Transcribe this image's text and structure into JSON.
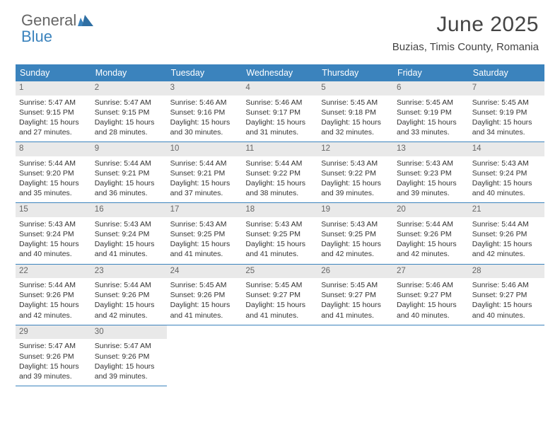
{
  "brand": {
    "word1": "General",
    "word2": "Blue"
  },
  "title": "June 2025",
  "location": "Buzias, Timis County, Romania",
  "colors": {
    "header_bg": "#3b83bd",
    "header_text": "#ffffff",
    "daynum_bg": "#e9e9e9",
    "row_border": "#3b83bd",
    "body_text": "#333333",
    "logo_gray": "#666666",
    "logo_blue": "#3b83bd"
  },
  "typography": {
    "title_fontsize": 30,
    "location_fontsize": 15,
    "header_cell_fontsize": 12.5,
    "cell_fontsize": 10.5
  },
  "layout": {
    "columns": 7,
    "col_width": 106.8,
    "total_width": 748
  },
  "weekdays": [
    "Sunday",
    "Monday",
    "Tuesday",
    "Wednesday",
    "Thursday",
    "Friday",
    "Saturday"
  ],
  "weeks": [
    [
      {
        "day": "1",
        "sunrise": "Sunrise: 5:47 AM",
        "sunset": "Sunset: 9:15 PM",
        "day1": "Daylight: 15 hours",
        "day2": "and 27 minutes."
      },
      {
        "day": "2",
        "sunrise": "Sunrise: 5:47 AM",
        "sunset": "Sunset: 9:15 PM",
        "day1": "Daylight: 15 hours",
        "day2": "and 28 minutes."
      },
      {
        "day": "3",
        "sunrise": "Sunrise: 5:46 AM",
        "sunset": "Sunset: 9:16 PM",
        "day1": "Daylight: 15 hours",
        "day2": "and 30 minutes."
      },
      {
        "day": "4",
        "sunrise": "Sunrise: 5:46 AM",
        "sunset": "Sunset: 9:17 PM",
        "day1": "Daylight: 15 hours",
        "day2": "and 31 minutes."
      },
      {
        "day": "5",
        "sunrise": "Sunrise: 5:45 AM",
        "sunset": "Sunset: 9:18 PM",
        "day1": "Daylight: 15 hours",
        "day2": "and 32 minutes."
      },
      {
        "day": "6",
        "sunrise": "Sunrise: 5:45 AM",
        "sunset": "Sunset: 9:19 PM",
        "day1": "Daylight: 15 hours",
        "day2": "and 33 minutes."
      },
      {
        "day": "7",
        "sunrise": "Sunrise: 5:45 AM",
        "sunset": "Sunset: 9:19 PM",
        "day1": "Daylight: 15 hours",
        "day2": "and 34 minutes."
      }
    ],
    [
      {
        "day": "8",
        "sunrise": "Sunrise: 5:44 AM",
        "sunset": "Sunset: 9:20 PM",
        "day1": "Daylight: 15 hours",
        "day2": "and 35 minutes."
      },
      {
        "day": "9",
        "sunrise": "Sunrise: 5:44 AM",
        "sunset": "Sunset: 9:21 PM",
        "day1": "Daylight: 15 hours",
        "day2": "and 36 minutes."
      },
      {
        "day": "10",
        "sunrise": "Sunrise: 5:44 AM",
        "sunset": "Sunset: 9:21 PM",
        "day1": "Daylight: 15 hours",
        "day2": "and 37 minutes."
      },
      {
        "day": "11",
        "sunrise": "Sunrise: 5:44 AM",
        "sunset": "Sunset: 9:22 PM",
        "day1": "Daylight: 15 hours",
        "day2": "and 38 minutes."
      },
      {
        "day": "12",
        "sunrise": "Sunrise: 5:43 AM",
        "sunset": "Sunset: 9:22 PM",
        "day1": "Daylight: 15 hours",
        "day2": "and 39 minutes."
      },
      {
        "day": "13",
        "sunrise": "Sunrise: 5:43 AM",
        "sunset": "Sunset: 9:23 PM",
        "day1": "Daylight: 15 hours",
        "day2": "and 39 minutes."
      },
      {
        "day": "14",
        "sunrise": "Sunrise: 5:43 AM",
        "sunset": "Sunset: 9:24 PM",
        "day1": "Daylight: 15 hours",
        "day2": "and 40 minutes."
      }
    ],
    [
      {
        "day": "15",
        "sunrise": "Sunrise: 5:43 AM",
        "sunset": "Sunset: 9:24 PM",
        "day1": "Daylight: 15 hours",
        "day2": "and 40 minutes."
      },
      {
        "day": "16",
        "sunrise": "Sunrise: 5:43 AM",
        "sunset": "Sunset: 9:24 PM",
        "day1": "Daylight: 15 hours",
        "day2": "and 41 minutes."
      },
      {
        "day": "17",
        "sunrise": "Sunrise: 5:43 AM",
        "sunset": "Sunset: 9:25 PM",
        "day1": "Daylight: 15 hours",
        "day2": "and 41 minutes."
      },
      {
        "day": "18",
        "sunrise": "Sunrise: 5:43 AM",
        "sunset": "Sunset: 9:25 PM",
        "day1": "Daylight: 15 hours",
        "day2": "and 41 minutes."
      },
      {
        "day": "19",
        "sunrise": "Sunrise: 5:43 AM",
        "sunset": "Sunset: 9:25 PM",
        "day1": "Daylight: 15 hours",
        "day2": "and 42 minutes."
      },
      {
        "day": "20",
        "sunrise": "Sunrise: 5:44 AM",
        "sunset": "Sunset: 9:26 PM",
        "day1": "Daylight: 15 hours",
        "day2": "and 42 minutes."
      },
      {
        "day": "21",
        "sunrise": "Sunrise: 5:44 AM",
        "sunset": "Sunset: 9:26 PM",
        "day1": "Daylight: 15 hours",
        "day2": "and 42 minutes."
      }
    ],
    [
      {
        "day": "22",
        "sunrise": "Sunrise: 5:44 AM",
        "sunset": "Sunset: 9:26 PM",
        "day1": "Daylight: 15 hours",
        "day2": "and 42 minutes."
      },
      {
        "day": "23",
        "sunrise": "Sunrise: 5:44 AM",
        "sunset": "Sunset: 9:26 PM",
        "day1": "Daylight: 15 hours",
        "day2": "and 42 minutes."
      },
      {
        "day": "24",
        "sunrise": "Sunrise: 5:45 AM",
        "sunset": "Sunset: 9:26 PM",
        "day1": "Daylight: 15 hours",
        "day2": "and 41 minutes."
      },
      {
        "day": "25",
        "sunrise": "Sunrise: 5:45 AM",
        "sunset": "Sunset: 9:27 PM",
        "day1": "Daylight: 15 hours",
        "day2": "and 41 minutes."
      },
      {
        "day": "26",
        "sunrise": "Sunrise: 5:45 AM",
        "sunset": "Sunset: 9:27 PM",
        "day1": "Daylight: 15 hours",
        "day2": "and 41 minutes."
      },
      {
        "day": "27",
        "sunrise": "Sunrise: 5:46 AM",
        "sunset": "Sunset: 9:27 PM",
        "day1": "Daylight: 15 hours",
        "day2": "and 40 minutes."
      },
      {
        "day": "28",
        "sunrise": "Sunrise: 5:46 AM",
        "sunset": "Sunset: 9:27 PM",
        "day1": "Daylight: 15 hours",
        "day2": "and 40 minutes."
      }
    ],
    [
      {
        "day": "29",
        "sunrise": "Sunrise: 5:47 AM",
        "sunset": "Sunset: 9:26 PM",
        "day1": "Daylight: 15 hours",
        "day2": "and 39 minutes."
      },
      {
        "day": "30",
        "sunrise": "Sunrise: 5:47 AM",
        "sunset": "Sunset: 9:26 PM",
        "day1": "Daylight: 15 hours",
        "day2": "and 39 minutes."
      },
      {
        "empty": true
      },
      {
        "empty": true
      },
      {
        "empty": true
      },
      {
        "empty": true
      },
      {
        "empty": true
      }
    ]
  ]
}
